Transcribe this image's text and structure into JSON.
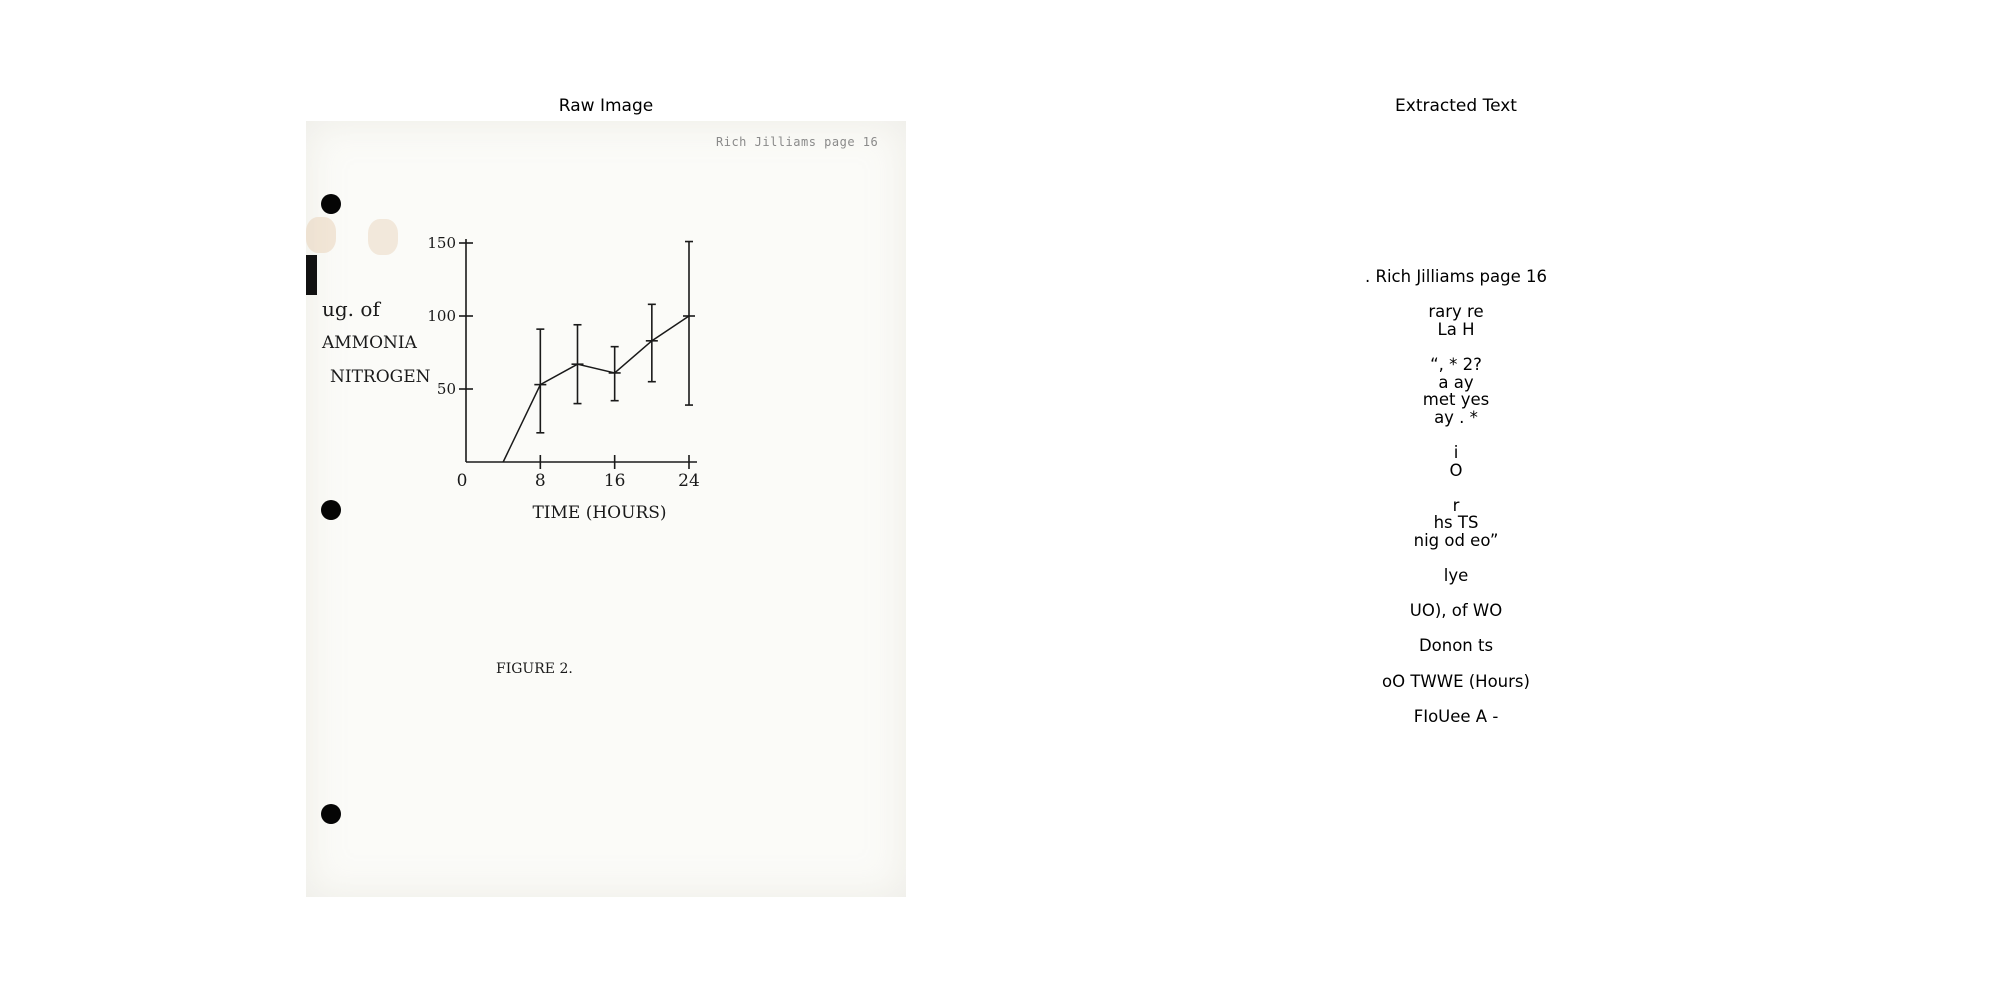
{
  "panels": {
    "left_title": "Raw Image",
    "right_title": "Extracted Text"
  },
  "raw_image": {
    "header_stamp": "Rich Jilliams  page 16",
    "y_label": [
      "ug. of",
      "AMMONIA",
      "NITROGEN"
    ],
    "x_label": "TIME (HOURS)",
    "caption": "FIGURE 2."
  },
  "chart_data": {
    "type": "line",
    "xlabel": "TIME (HOURS)",
    "ylabel": "ug. of AMMONIA NITROGEN",
    "x_ticks": [
      "0",
      "8",
      "16",
      "24"
    ],
    "y_ticks": [
      "50",
      "100",
      "150"
    ],
    "xlim": [
      0,
      24
    ],
    "ylim": [
      0,
      150
    ],
    "x": [
      4,
      8,
      12,
      16,
      20,
      24
    ],
    "values": [
      0,
      53,
      67,
      61,
      83,
      100
    ],
    "error_low": [
      null,
      20,
      40,
      42,
      55,
      39
    ],
    "error_high": [
      null,
      91,
      94,
      79,
      108,
      151
    ]
  },
  "extracted_text": [
    [
      ". Rich Jilliams page 16"
    ],
    [
      "rary re",
      "La H"
    ],
    [
      "“, * 2?",
      "a ay",
      "met yes",
      "ay . *"
    ],
    [
      "i",
      "O"
    ],
    [
      "r",
      "hs TS",
      "nig od eo”"
    ],
    [
      "lye"
    ],
    [
      "UO), of WO"
    ],
    [
      "Donon ts"
    ],
    [
      "oO TWWE (Hours)"
    ],
    [
      "FIoUee A -"
    ]
  ]
}
